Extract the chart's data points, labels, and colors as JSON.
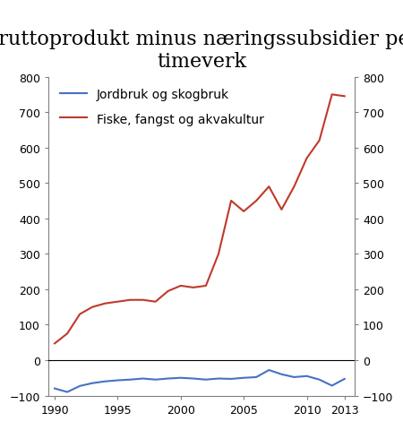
{
  "title": "Bruttoprodukt minus næringssubsidier per\ntimeverk",
  "years": [
    1990,
    1991,
    1992,
    1993,
    1994,
    1995,
    1996,
    1997,
    1998,
    1999,
    2000,
    2001,
    2002,
    2003,
    2004,
    2005,
    2006,
    2007,
    2008,
    2009,
    2010,
    2011,
    2012,
    2013
  ],
  "jordbruk": [
    -80,
    -90,
    -73,
    -65,
    -60,
    -57,
    -55,
    -52,
    -55,
    -52,
    -50,
    -52,
    -55,
    -52,
    -53,
    -50,
    -48,
    -28,
    -40,
    -48,
    -45,
    -55,
    -72,
    -53
  ],
  "fiske": [
    47,
    75,
    130,
    150,
    160,
    165,
    170,
    170,
    165,
    195,
    210,
    205,
    210,
    300,
    450,
    420,
    450,
    490,
    425,
    490,
    570,
    620,
    750,
    745
  ],
  "ylim": [
    -100,
    800
  ],
  "yticks": [
    -100,
    0,
    100,
    200,
    300,
    400,
    500,
    600,
    700,
    800
  ],
  "xlim_left": 1989.5,
  "xlim_right": 2013.8,
  "xticks": [
    1990,
    1995,
    2000,
    2005,
    2010,
    2013
  ],
  "line1_color": "#4472c4",
  "line2_color": "#c0392b",
  "line1_label": "Jordbruk og skogbruk",
  "line2_label": "Fiske, fangst og akvakultur",
  "legend_fontsize": 10,
  "title_fontsize": 16,
  "tick_fontsize": 9,
  "background_color": "#ffffff",
  "zero_line_color": "#000000",
  "spine_color": "#808080"
}
